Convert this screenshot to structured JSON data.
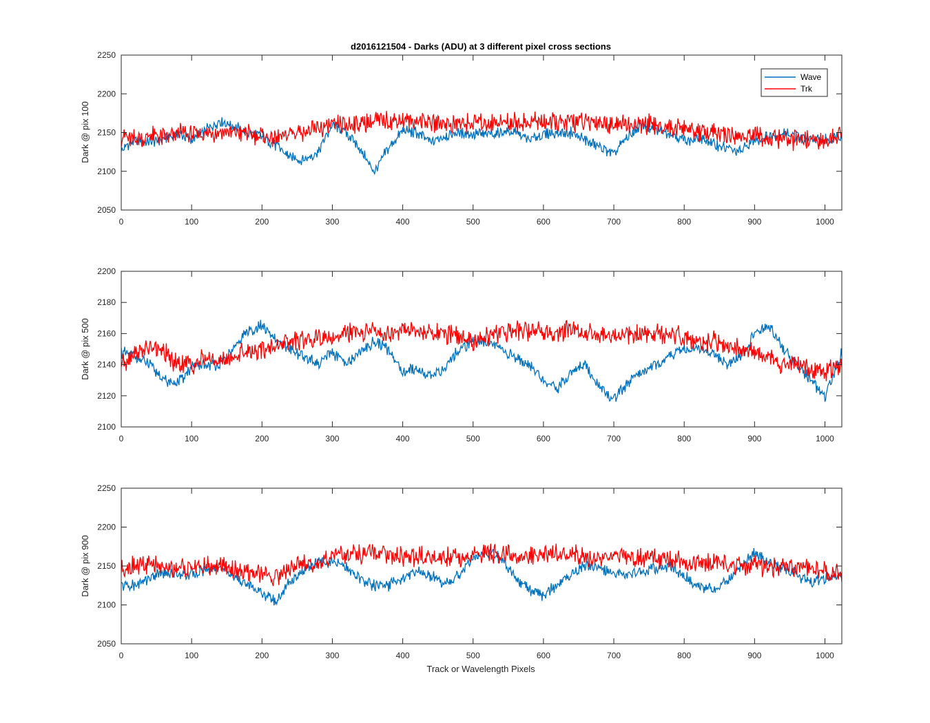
{
  "title": "d2016121504 - Darks (ADU) at 3 different pixel cross sections",
  "xlabel": "Track or Wavelength Pixels",
  "legend": [
    "Wave",
    "Trk"
  ],
  "colors": {
    "wave": "#0072BD",
    "trk": "#FF0000",
    "axes": "#262626"
  },
  "chart_data": [
    {
      "type": "line",
      "ylabel": "Dark @ pix 100",
      "xlim": [
        0,
        1024
      ],
      "ylim": [
        2050,
        2250
      ],
      "xticks": [
        0,
        100,
        200,
        300,
        400,
        500,
        600,
        700,
        800,
        900,
        1000
      ],
      "yticks": [
        2050,
        2100,
        2150,
        2200,
        2250
      ],
      "legend_location": "top-right",
      "series": [
        {
          "name": "Wave",
          "color": "#0072BD",
          "x": [
            0,
            20,
            40,
            60,
            80,
            100,
            120,
            140,
            160,
            180,
            200,
            220,
            240,
            260,
            280,
            300,
            320,
            340,
            360,
            380,
            400,
            420,
            440,
            460,
            480,
            500,
            520,
            540,
            560,
            580,
            600,
            620,
            640,
            660,
            680,
            700,
            720,
            740,
            760,
            780,
            800,
            820,
            840,
            860,
            880,
            900,
            920,
            940,
            960,
            980,
            1000,
            1024
          ],
          "y": [
            2128,
            2140,
            2138,
            2142,
            2150,
            2140,
            2152,
            2165,
            2158,
            2150,
            2145,
            2133,
            2118,
            2115,
            2125,
            2160,
            2150,
            2128,
            2100,
            2130,
            2152,
            2150,
            2138,
            2145,
            2150,
            2148,
            2147,
            2150,
            2150,
            2140,
            2148,
            2150,
            2150,
            2140,
            2132,
            2122,
            2145,
            2160,
            2152,
            2150,
            2140,
            2142,
            2136,
            2130,
            2125,
            2140,
            2145,
            2150,
            2145,
            2140,
            2140,
            2148
          ]
        },
        {
          "name": "Trk",
          "color": "#FF0000",
          "x": [
            0,
            20,
            40,
            60,
            80,
            100,
            120,
            140,
            160,
            180,
            200,
            220,
            240,
            260,
            280,
            300,
            320,
            340,
            360,
            380,
            400,
            420,
            440,
            460,
            480,
            500,
            520,
            540,
            560,
            580,
            600,
            620,
            640,
            660,
            680,
            700,
            720,
            740,
            760,
            780,
            800,
            820,
            840,
            860,
            880,
            900,
            920,
            940,
            960,
            980,
            1000,
            1024
          ],
          "y": [
            2145,
            2142,
            2145,
            2145,
            2148,
            2148,
            2150,
            2150,
            2150,
            2150,
            2145,
            2143,
            2148,
            2150,
            2155,
            2158,
            2160,
            2163,
            2165,
            2165,
            2165,
            2165,
            2163,
            2162,
            2162,
            2162,
            2163,
            2163,
            2163,
            2163,
            2163,
            2163,
            2163,
            2163,
            2163,
            2160,
            2160,
            2160,
            2160,
            2155,
            2155,
            2152,
            2150,
            2148,
            2145,
            2145,
            2143,
            2142,
            2140,
            2140,
            2138,
            2148
          ]
        }
      ]
    },
    {
      "type": "line",
      "ylabel": "Dark @ pix 500",
      "xlim": [
        0,
        1024
      ],
      "ylim": [
        2100,
        2200
      ],
      "xticks": [
        0,
        100,
        200,
        300,
        400,
        500,
        600,
        700,
        800,
        900,
        1000
      ],
      "yticks": [
        2100,
        2120,
        2140,
        2160,
        2180,
        2200
      ],
      "series": [
        {
          "name": "Wave",
          "color": "#0072BD",
          "x": [
            0,
            20,
            40,
            60,
            80,
            100,
            120,
            140,
            160,
            180,
            200,
            220,
            240,
            260,
            280,
            300,
            320,
            340,
            360,
            380,
            400,
            420,
            440,
            460,
            480,
            500,
            520,
            540,
            560,
            580,
            600,
            620,
            640,
            660,
            680,
            700,
            720,
            740,
            760,
            780,
            800,
            820,
            840,
            860,
            880,
            900,
            920,
            940,
            960,
            980,
            1000,
            1024
          ],
          "y": [
            2148,
            2145,
            2140,
            2130,
            2128,
            2138,
            2140,
            2140,
            2150,
            2162,
            2165,
            2155,
            2150,
            2145,
            2140,
            2148,
            2140,
            2148,
            2155,
            2150,
            2135,
            2138,
            2132,
            2138,
            2150,
            2155,
            2155,
            2150,
            2145,
            2140,
            2130,
            2125,
            2135,
            2140,
            2125,
            2118,
            2128,
            2135,
            2140,
            2145,
            2150,
            2150,
            2148,
            2140,
            2145,
            2160,
            2165,
            2150,
            2140,
            2130,
            2120,
            2148
          ]
        },
        {
          "name": "Trk",
          "color": "#FF0000",
          "x": [
            0,
            20,
            40,
            60,
            80,
            100,
            120,
            140,
            160,
            180,
            200,
            220,
            240,
            260,
            280,
            300,
            320,
            340,
            360,
            380,
            400,
            420,
            440,
            460,
            480,
            500,
            520,
            540,
            560,
            580,
            600,
            620,
            640,
            660,
            680,
            700,
            720,
            740,
            760,
            780,
            800,
            820,
            840,
            860,
            880,
            900,
            920,
            940,
            960,
            980,
            1000,
            1024
          ],
          "y": [
            2140,
            2148,
            2150,
            2148,
            2140,
            2140,
            2145,
            2142,
            2145,
            2150,
            2150,
            2152,
            2155,
            2155,
            2158,
            2158,
            2160,
            2160,
            2162,
            2160,
            2162,
            2162,
            2160,
            2160,
            2158,
            2155,
            2158,
            2160,
            2162,
            2162,
            2162,
            2160,
            2162,
            2160,
            2160,
            2158,
            2158,
            2160,
            2160,
            2160,
            2158,
            2155,
            2155,
            2152,
            2150,
            2148,
            2145,
            2140,
            2140,
            2138,
            2135,
            2140
          ]
        }
      ]
    },
    {
      "type": "line",
      "ylabel": "Dark @ pix 900",
      "xlim": [
        0,
        1024
      ],
      "ylim": [
        2050,
        2250
      ],
      "xticks": [
        0,
        100,
        200,
        300,
        400,
        500,
        600,
        700,
        800,
        900,
        1000
      ],
      "yticks": [
        2050,
        2100,
        2150,
        2200,
        2250
      ],
      "series": [
        {
          "name": "Wave",
          "color": "#0072BD",
          "x": [
            0,
            20,
            40,
            60,
            80,
            100,
            120,
            140,
            160,
            180,
            200,
            220,
            240,
            260,
            280,
            300,
            320,
            340,
            360,
            380,
            400,
            420,
            440,
            460,
            480,
            500,
            520,
            540,
            560,
            580,
            600,
            620,
            640,
            660,
            680,
            700,
            720,
            740,
            760,
            780,
            800,
            820,
            840,
            860,
            880,
            900,
            920,
            940,
            960,
            980,
            1000,
            1024
          ],
          "y": [
            2125,
            2125,
            2135,
            2142,
            2140,
            2140,
            2145,
            2150,
            2135,
            2125,
            2115,
            2105,
            2130,
            2145,
            2155,
            2155,
            2148,
            2135,
            2125,
            2125,
            2135,
            2145,
            2138,
            2125,
            2140,
            2160,
            2168,
            2160,
            2135,
            2120,
            2112,
            2125,
            2140,
            2150,
            2148,
            2140,
            2140,
            2142,
            2148,
            2150,
            2138,
            2125,
            2120,
            2130,
            2148,
            2168,
            2155,
            2148,
            2138,
            2130,
            2135,
            2140
          ]
        },
        {
          "name": "Trk",
          "color": "#FF0000",
          "x": [
            0,
            20,
            40,
            60,
            80,
            100,
            120,
            140,
            160,
            180,
            200,
            220,
            240,
            260,
            280,
            300,
            320,
            340,
            360,
            380,
            400,
            420,
            440,
            460,
            480,
            500,
            520,
            540,
            560,
            580,
            600,
            620,
            640,
            660,
            680,
            700,
            720,
            740,
            760,
            780,
            800,
            820,
            840,
            860,
            880,
            900,
            920,
            940,
            960,
            980,
            1000,
            1024
          ],
          "y": [
            2148,
            2150,
            2150,
            2150,
            2148,
            2148,
            2150,
            2150,
            2145,
            2142,
            2140,
            2135,
            2148,
            2152,
            2155,
            2162,
            2165,
            2165,
            2165,
            2163,
            2163,
            2163,
            2162,
            2162,
            2162,
            2165,
            2165,
            2165,
            2163,
            2163,
            2163,
            2165,
            2165,
            2163,
            2163,
            2162,
            2162,
            2160,
            2160,
            2158,
            2155,
            2155,
            2153,
            2152,
            2150,
            2150,
            2148,
            2148,
            2145,
            2145,
            2143,
            2140
          ]
        }
      ]
    }
  ]
}
